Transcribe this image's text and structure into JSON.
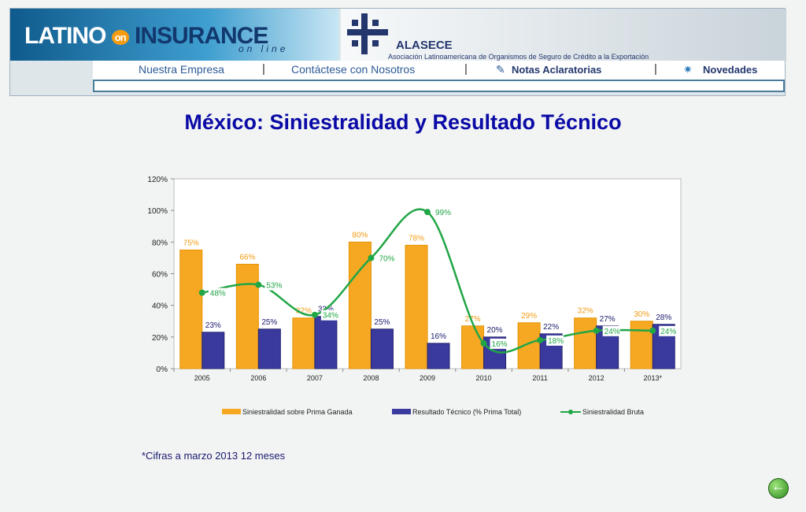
{
  "header": {
    "logo_main": "LATINO",
    "logo_on": "on",
    "logo_insurance": "INSURANCE",
    "logo_sub": "on line",
    "alasece_name": "ALASECE",
    "alasece_desc": "Asociación Latinoamericana de Organismos de Seguro de Crédito a la Exportación",
    "nav": [
      "Nuestra Empresa",
      "Contáctese con Nosotros",
      "Notas Aclaratorias",
      "Novedades"
    ]
  },
  "page_title": "México: Siniestralidad y Resultado Técnico",
  "footnote": "*Cifras a marzo 2013 12 meses",
  "colors": {
    "bar1": "#f7a823",
    "bar2": "#3a3a9e",
    "line": "#21a646",
    "label1": "#f39c12",
    "label2": "#1a1a6e",
    "label3": "#21a646"
  },
  "chart_data": {
    "type": "bar",
    "categories": [
      "2005",
      "2006",
      "2007",
      "2008",
      "2009",
      "2010",
      "2011",
      "2012",
      "2013*"
    ],
    "ylim": [
      0,
      120
    ],
    "yticks": [
      "0%",
      "20%",
      "40%",
      "60%",
      "80%",
      "100%",
      "120%"
    ],
    "series": [
      {
        "name": "Siniestralidad sobre Prima Ganada",
        "type": "bar",
        "values": [
          75,
          66,
          32,
          80,
          78,
          27,
          29,
          32,
          30
        ],
        "labels": [
          "75%",
          "66%",
          "32%",
          "80%",
          "78%",
          "27%",
          "29%",
          "32%",
          "30%"
        ]
      },
      {
        "name": "Resultado Técnico (% Prima Total)",
        "type": "bar",
        "values": [
          23,
          25,
          33,
          25,
          16,
          20,
          22,
          27,
          28
        ],
        "labels": [
          "23%",
          "25%",
          "33%",
          "25%",
          "16%",
          "20%",
          "22%",
          "27%",
          "28%"
        ]
      },
      {
        "name": "Siniestralidad Bruta",
        "type": "line",
        "values": [
          48,
          53,
          34,
          70,
          99,
          16,
          18,
          24,
          24
        ],
        "labels": [
          "48%",
          "53%",
          "34%",
          "70%",
          "99%",
          "16%",
          "18%",
          "24%",
          "24%"
        ]
      }
    ],
    "legend_position": "bottom"
  }
}
